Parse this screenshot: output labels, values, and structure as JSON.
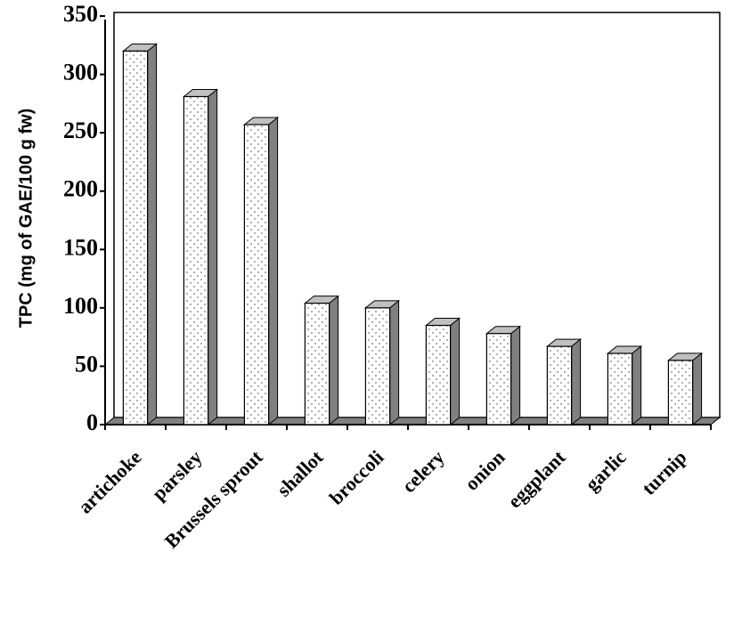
{
  "chart_data": {
    "type": "bar3d",
    "ylabel": "TPC (mg of GAE/100 g fw)",
    "categories": [
      "artichoke",
      "parsley",
      "Brussels sprout",
      "shallot",
      "broccoli",
      "celery",
      "onion",
      "eggplant",
      "garlic",
      "turnip"
    ],
    "values": [
      320,
      281,
      257,
      104,
      100,
      85,
      78,
      67,
      61,
      55
    ],
    "color": "#ffffff",
    "ylim": [
      0,
      350
    ],
    "yticks": [
      0,
      50,
      100,
      150,
      200,
      250,
      300,
      350
    ]
  }
}
